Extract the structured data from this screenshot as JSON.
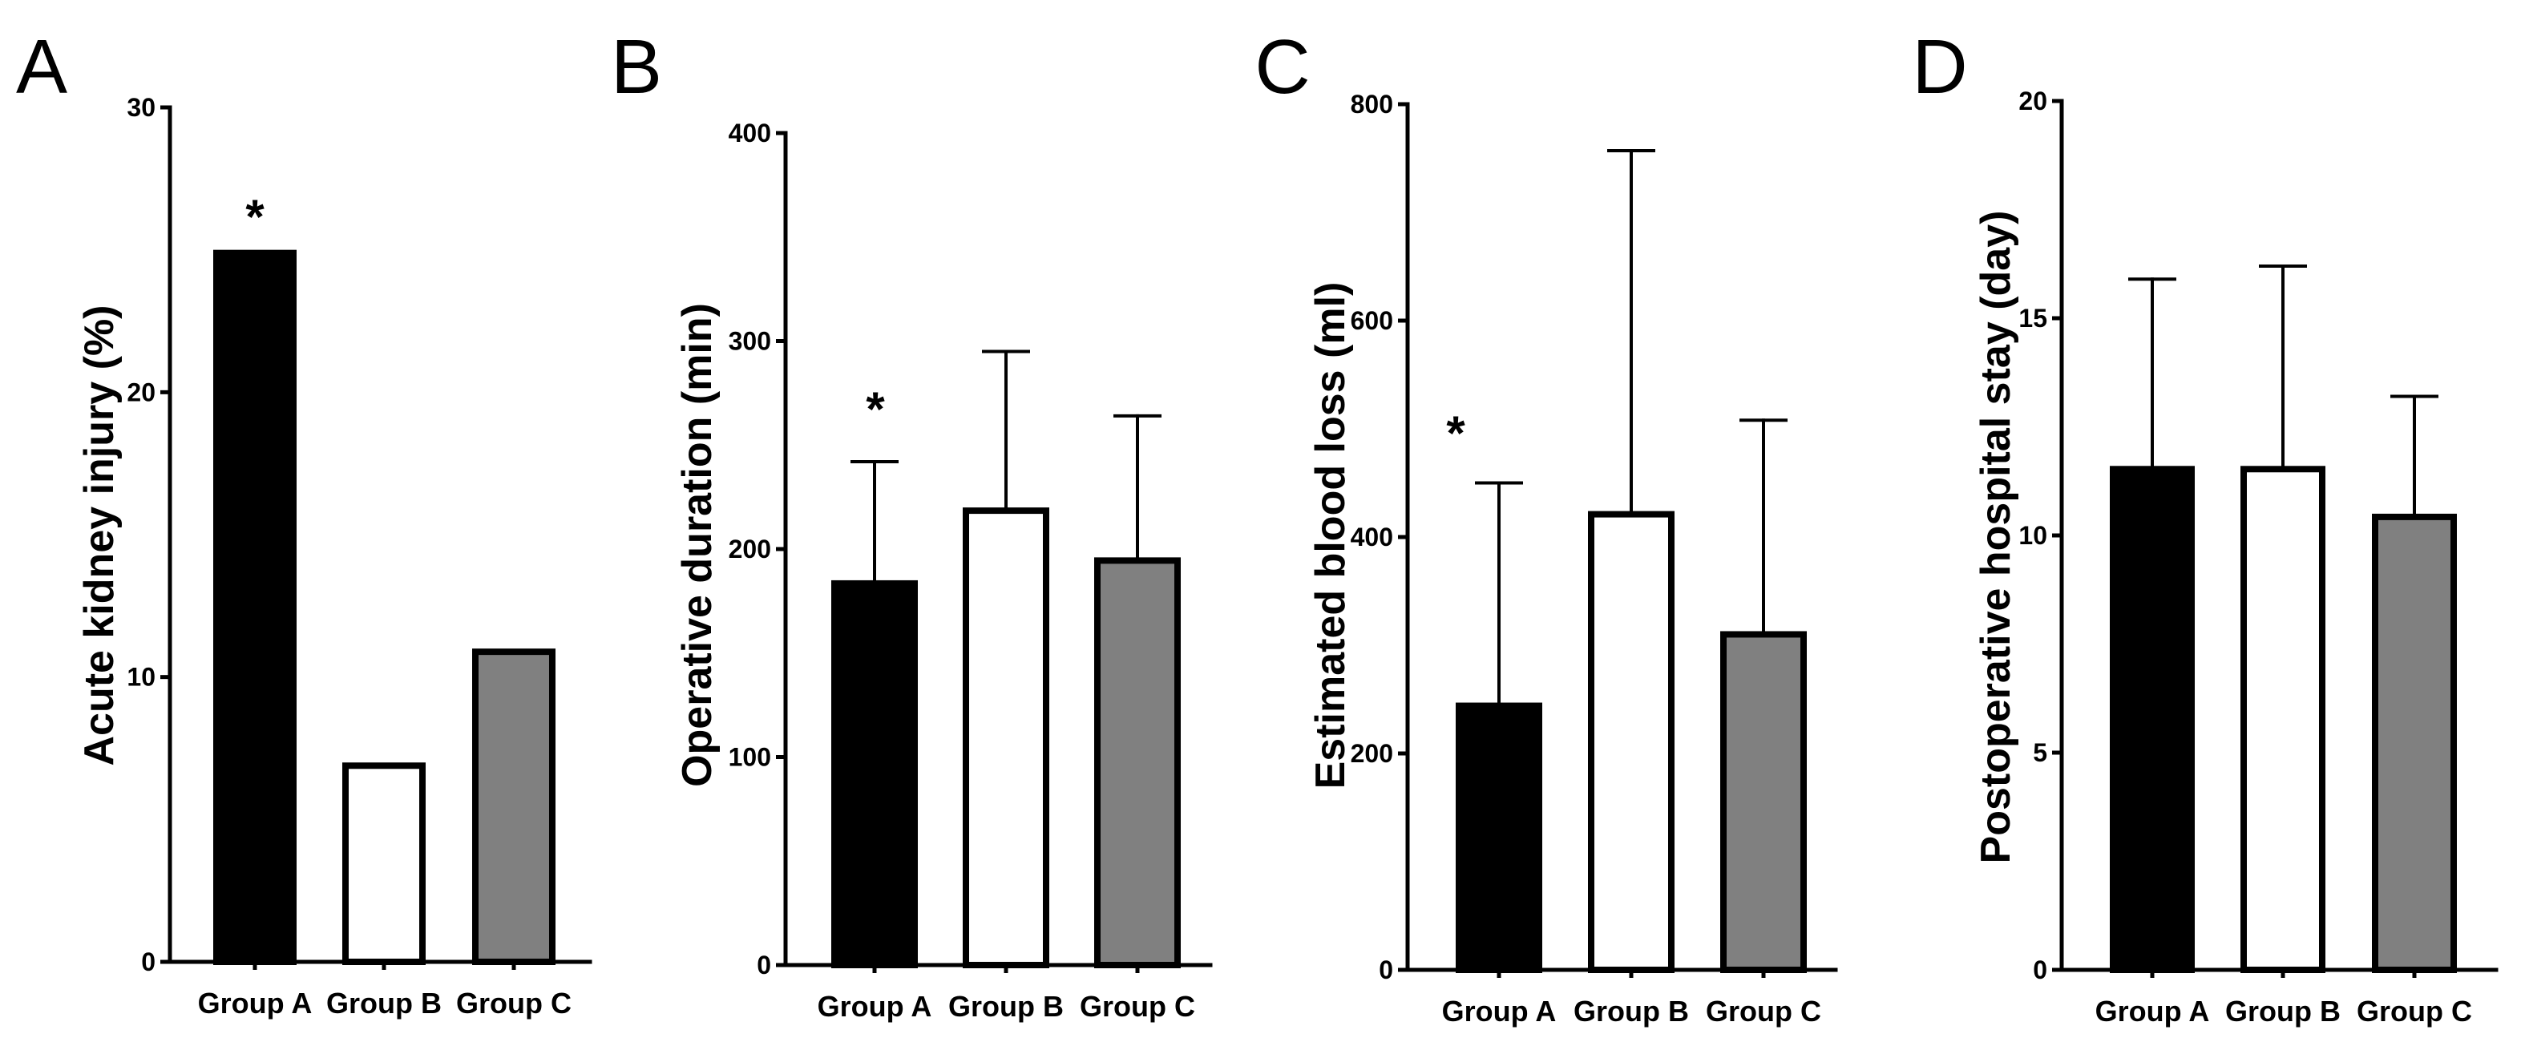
{
  "chart_data": [
    {
      "panel": "A",
      "type": "bar",
      "categories": [
        "Group A",
        "Group B",
        "Group C"
      ],
      "values": [
        25,
        7,
        11
      ],
      "ylabel": "Acute kidney injury (%)",
      "ylim": [
        0,
        30
      ],
      "yticks": [
        0,
        10,
        20,
        30
      ],
      "colors": [
        "#000000",
        "#ffffff",
        "#808080"
      ],
      "annotations": [
        {
          "text": "*",
          "category_index": 0
        }
      ]
    },
    {
      "panel": "B",
      "type": "bar",
      "categories": [
        "Group A",
        "Group B",
        "Group C"
      ],
      "values": [
        185,
        220,
        196
      ],
      "errors": [
        57,
        75,
        68
      ],
      "ylabel": "Operative duration (min)",
      "ylim": [
        0,
        400
      ],
      "yticks": [
        0,
        100,
        200,
        300,
        400
      ],
      "colors": [
        "#000000",
        "#ffffff",
        "#808080"
      ],
      "annotations": [
        {
          "text": "*",
          "category_index": 0
        }
      ]
    },
    {
      "panel": "C",
      "type": "bar",
      "categories": [
        "Group A",
        "Group B",
        "Group C"
      ],
      "values": [
        247,
        424,
        313
      ],
      "errors": [
        203,
        333,
        195
      ],
      "ylabel": "Estimated blood loss (ml)",
      "ylim": [
        0,
        800
      ],
      "yticks": [
        0,
        200,
        400,
        600,
        800
      ],
      "colors": [
        "#000000",
        "#ffffff",
        "#808080"
      ],
      "annotations": [
        {
          "text": "*",
          "category_index": 0
        }
      ]
    },
    {
      "panel": "D",
      "type": "bar",
      "categories": [
        "Group A",
        "Group B",
        "Group C"
      ],
      "values": [
        11.6,
        11.6,
        10.5
      ],
      "errors": [
        4.3,
        4.6,
        2.7
      ],
      "ylabel": "Postoperative hospital stay (day)",
      "ylim": [
        0,
        20
      ],
      "yticks": [
        0,
        5,
        10,
        15,
        20
      ],
      "colors": [
        "#000000",
        "#ffffff",
        "#808080"
      ],
      "annotations": []
    }
  ]
}
